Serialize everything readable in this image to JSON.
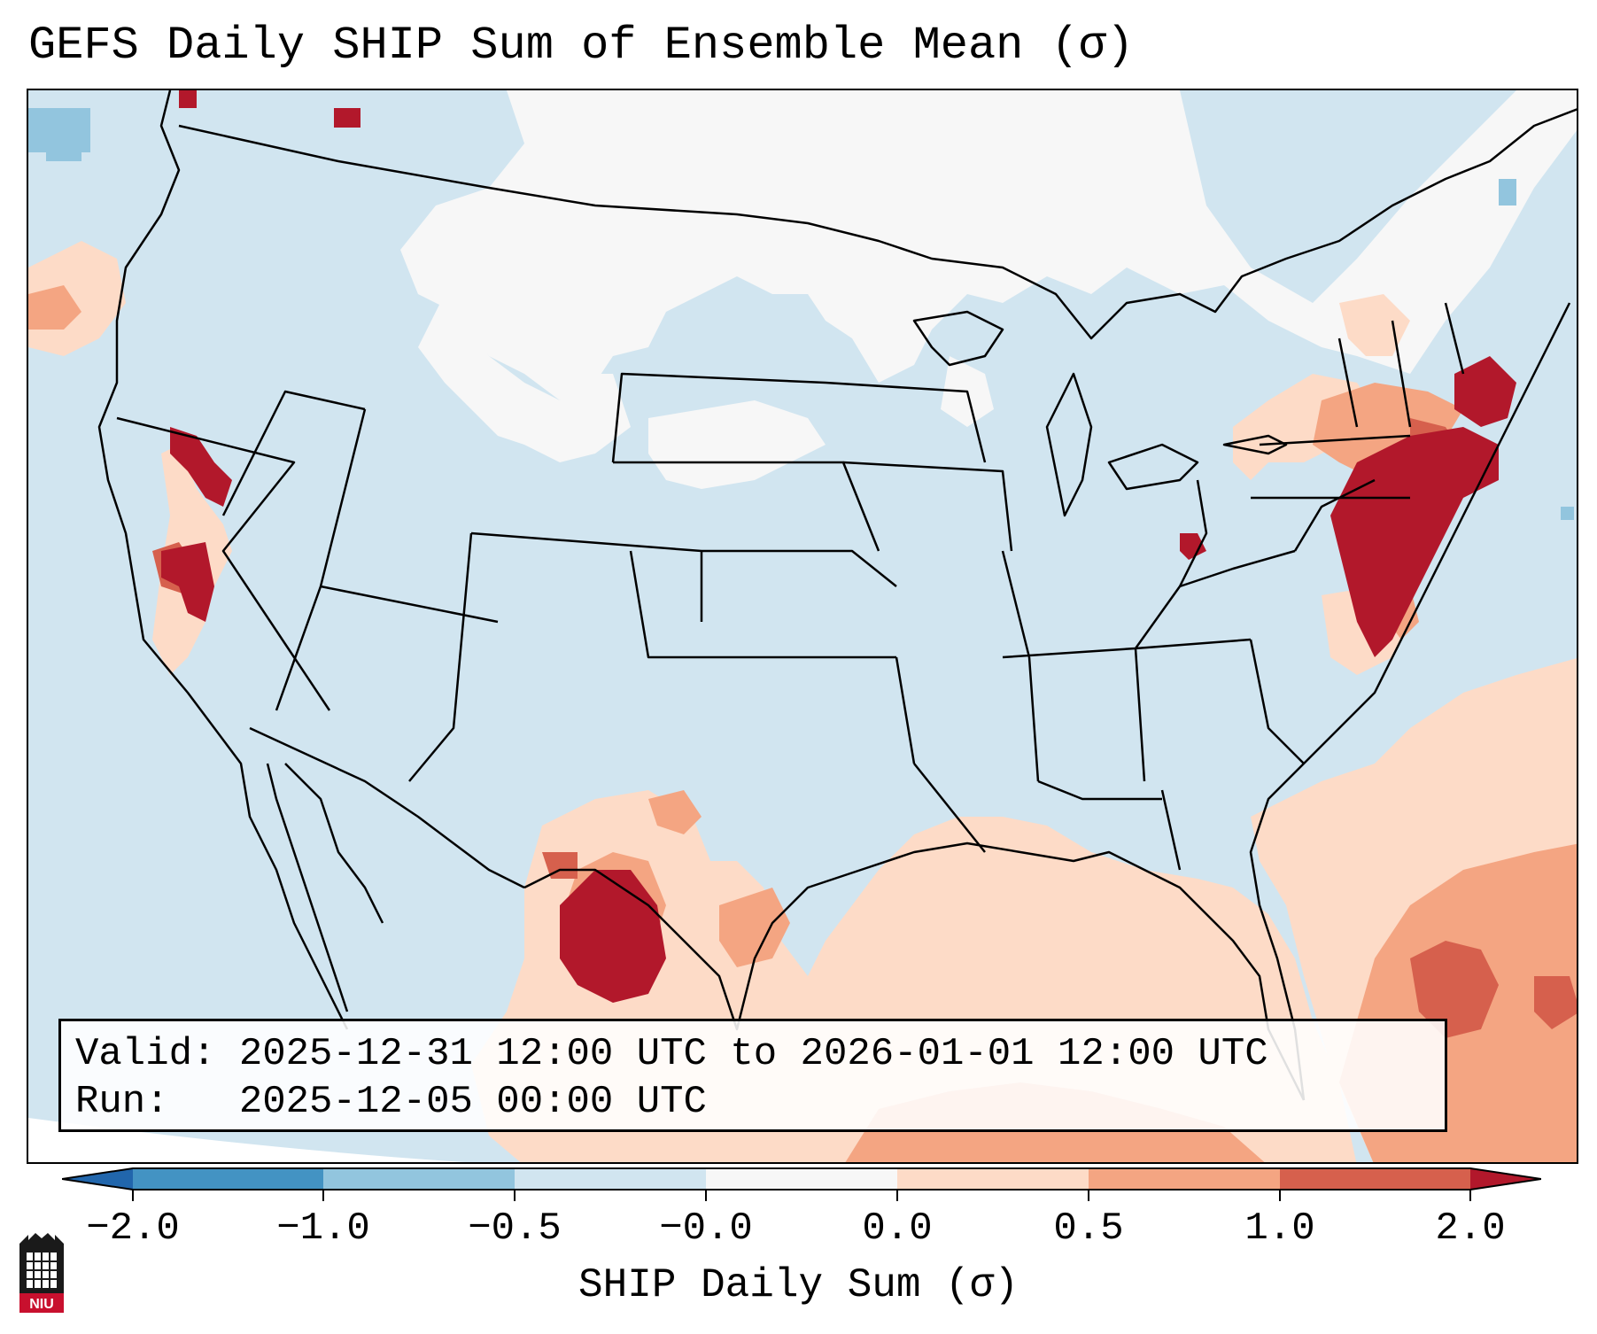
{
  "title": "GEFS Daily SHIP Sum of Ensemble Mean (σ)",
  "info": {
    "valid_label": "Valid:",
    "valid_text": "2025-12-31 12:00 UTC to 2026-01-01 12:00 UTC",
    "run_label": "Run:",
    "run_text": "2025-12-05 00:00 UTC"
  },
  "colorbar": {
    "label": "SHIP Daily Sum (σ)",
    "ticks": [
      "−2.0",
      "−1.0",
      "−0.5",
      "−0.0",
      "0.0",
      "0.5",
      "1.0",
      "2.0"
    ],
    "colors": [
      "#4393c3",
      "#92c5de",
      "#d1e5f0",
      "#f7f7f7",
      "#fddbc7",
      "#f4a582",
      "#d6604d",
      "#b2182b"
    ],
    "background_color": "#d1e5f0"
  },
  "logo": {
    "text": "NIU"
  }
}
